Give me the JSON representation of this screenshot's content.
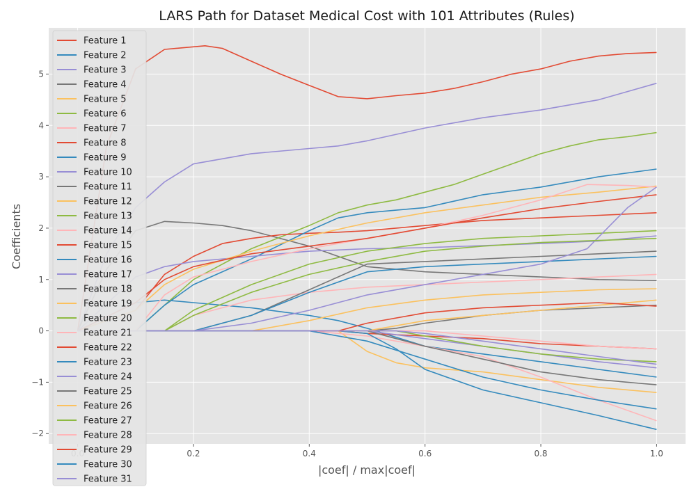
{
  "chart_data": {
    "type": "line",
    "title": "LARS Path for Dataset Medical Cost with 101 Attributes (Rules)",
    "xlabel": "|coef| / max|coef|",
    "ylabel": "Coefficients",
    "xlim": [
      -0.05,
      1.05
    ],
    "ylim": [
      -2.2,
      5.9
    ],
    "xticks": [
      0.0,
      0.2,
      0.4,
      0.6,
      0.8,
      1.0
    ],
    "xtick_labels": [
      "0.0",
      "0.2",
      "0.4",
      "0.6",
      "0.8",
      "1.0"
    ],
    "yticks": [
      -2,
      -1,
      0,
      1,
      2,
      3,
      4,
      5
    ],
    "ytick_labels": [
      "−2",
      "−1",
      "0",
      "1",
      "2",
      "3",
      "4",
      "5"
    ],
    "grid": true,
    "legend_position": "upper-left",
    "colors": [
      "#E24A33",
      "#348ABD",
      "#988ED5",
      "#777777",
      "#FBC15E",
      "#8EBA42",
      "#FFB5B8"
    ],
    "series": [
      {
        "name": "Feature 1",
        "x": [
          0,
          0.05,
          0.1,
          0.15,
          0.22,
          0.25,
          0.3,
          0.35,
          0.4,
          0.45,
          0.5,
          0.55,
          0.6,
          0.65,
          0.7,
          0.75,
          0.8,
          0.85,
          0.9,
          0.95,
          1.0
        ],
        "y": [
          0,
          3.6,
          5.1,
          5.48,
          5.55,
          5.5,
          5.25,
          5.0,
          4.78,
          4.56,
          4.52,
          4.58,
          4.63,
          4.72,
          4.85,
          5.0,
          5.1,
          5.25,
          5.35,
          5.4,
          5.42
        ]
      },
      {
        "name": "Feature 2",
        "x": [
          0,
          0.1,
          0.15,
          0.2,
          0.3,
          0.4,
          0.45,
          0.5,
          0.6,
          0.7,
          0.8,
          0.9,
          1.0
        ],
        "y": [
          0,
          0.55,
          0.6,
          0.55,
          0.45,
          0.3,
          0.2,
          0.05,
          -0.3,
          -0.45,
          -0.6,
          -0.75,
          -0.9
        ]
      },
      {
        "name": "Feature 3",
        "x": [
          0,
          0.05,
          0.1,
          0.15,
          0.2,
          0.3,
          0.4,
          0.45,
          0.5,
          0.6,
          0.7,
          0.8,
          0.9,
          1.0
        ],
        "y": [
          0,
          1.5,
          2.4,
          2.9,
          3.25,
          3.45,
          3.55,
          3.6,
          3.7,
          3.95,
          4.15,
          4.3,
          4.5,
          4.82
        ]
      },
      {
        "name": "Feature 4",
        "x": [
          0,
          0.05,
          0.1,
          0.15,
          0.2,
          0.25,
          0.3,
          0.4,
          0.5,
          0.6,
          0.7,
          0.8,
          0.9,
          1.0
        ],
        "y": [
          0,
          1.2,
          1.95,
          2.13,
          2.1,
          2.05,
          1.95,
          1.65,
          1.25,
          1.15,
          1.1,
          1.05,
          1.0,
          0.98
        ]
      },
      {
        "name": "Feature 5",
        "x": [
          0,
          0.45,
          0.5,
          0.55,
          0.6,
          0.7,
          0.8,
          0.9,
          1.0
        ],
        "y": [
          0,
          0,
          -0.4,
          -0.62,
          -0.72,
          -0.8,
          -0.95,
          -1.1,
          -1.2
        ]
      },
      {
        "name": "Feature 6",
        "x": [
          0,
          0.1,
          0.15,
          0.2,
          0.3,
          0.4,
          0.45,
          0.5,
          0.55,
          0.6,
          0.65,
          0.7,
          0.75,
          0.8,
          0.85,
          0.9,
          0.95,
          1.0
        ],
        "y": [
          0,
          0,
          0.5,
          1.0,
          1.6,
          2.05,
          2.3,
          2.45,
          2.55,
          2.7,
          2.85,
          3.05,
          3.25,
          3.45,
          3.6,
          3.72,
          3.78,
          3.86
        ]
      },
      {
        "name": "Feature 7",
        "x": [
          0,
          0.15,
          0.2,
          0.3,
          0.4,
          0.5,
          0.6,
          0.7,
          0.8,
          0.9,
          1.0
        ],
        "y": [
          0,
          0,
          0.3,
          0.6,
          0.75,
          0.85,
          0.9,
          0.95,
          1.0,
          1.05,
          1.1
        ]
      },
      {
        "name": "Feature 8",
        "x": [
          0,
          0.1,
          0.15,
          0.2,
          0.25,
          0.3,
          0.35,
          0.4,
          0.45,
          0.5,
          0.55,
          0.6,
          0.7,
          0.8,
          0.9,
          1.0
        ],
        "y": [
          0,
          0.4,
          1.1,
          1.45,
          1.7,
          1.8,
          1.87,
          1.9,
          1.92,
          1.95,
          2.0,
          2.05,
          2.15,
          2.2,
          2.25,
          2.3
        ]
      },
      {
        "name": "Feature 9",
        "x": [
          0,
          0.1,
          0.15,
          0.2,
          0.3,
          0.4,
          0.45,
          0.5,
          0.55,
          0.6,
          0.7,
          0.8,
          0.9,
          1.0
        ],
        "y": [
          0,
          0,
          0.5,
          0.9,
          1.4,
          1.95,
          2.2,
          2.3,
          2.35,
          2.4,
          2.65,
          2.8,
          3.0,
          3.15
        ]
      },
      {
        "name": "Feature 10",
        "x": [
          0,
          0.1,
          0.15,
          0.2,
          0.3,
          0.4,
          0.5,
          0.6,
          0.7,
          0.8,
          0.9,
          1.0
        ],
        "y": [
          0,
          1.05,
          1.25,
          1.35,
          1.45,
          1.55,
          1.6,
          1.62,
          1.66,
          1.7,
          1.75,
          1.85
        ]
      },
      {
        "name": "Feature 11",
        "x": [
          0,
          0.2,
          0.3,
          0.4,
          0.5,
          0.6,
          0.7,
          0.8,
          0.9,
          1.0
        ],
        "y": [
          0,
          0,
          0.3,
          0.8,
          1.3,
          1.35,
          1.4,
          1.45,
          1.5,
          1.55
        ]
      },
      {
        "name": "Feature 12",
        "x": [
          0,
          0.1,
          0.15,
          0.2,
          0.3,
          0.4,
          0.5,
          0.6,
          0.7,
          0.8,
          0.9,
          1.0
        ],
        "y": [
          0,
          0.4,
          0.9,
          1.2,
          1.55,
          1.85,
          2.1,
          2.3,
          2.45,
          2.6,
          2.7,
          2.82
        ]
      },
      {
        "name": "Feature 13",
        "x": [
          0,
          0.15,
          0.2,
          0.3,
          0.4,
          0.5,
          0.6,
          0.7,
          0.8,
          0.9,
          1.0
        ],
        "y": [
          0,
          0,
          0.4,
          0.9,
          1.3,
          1.55,
          1.7,
          1.8,
          1.85,
          1.9,
          1.95
        ]
      },
      {
        "name": "Feature 14",
        "x": [
          0,
          0.1,
          0.15,
          0.2,
          0.3,
          0.4,
          0.5,
          0.6,
          0.7,
          0.8,
          0.88,
          0.95,
          1.0
        ],
        "y": [
          0,
          0,
          0.7,
          1.05,
          1.35,
          1.6,
          1.8,
          2.0,
          2.25,
          2.55,
          2.85,
          2.83,
          2.8
        ]
      },
      {
        "name": "Feature 15",
        "x": [
          0,
          0.1,
          0.15,
          0.2,
          0.3,
          0.4,
          0.5,
          0.6,
          0.7,
          0.8,
          0.9,
          1.0
        ],
        "y": [
          0,
          0.55,
          1.0,
          1.25,
          1.5,
          1.65,
          1.8,
          2.0,
          2.2,
          2.38,
          2.52,
          2.65
        ]
      },
      {
        "name": "Feature 16",
        "x": [
          0,
          0.2,
          0.3,
          0.4,
          0.5,
          0.6,
          0.7,
          0.8,
          0.9,
          1.0
        ],
        "y": [
          0,
          0,
          0.3,
          0.75,
          1.15,
          1.25,
          1.3,
          1.35,
          1.4,
          1.45
        ]
      },
      {
        "name": "Feature 17",
        "x": [
          0,
          0.2,
          0.3,
          0.4,
          0.5,
          0.6,
          0.7,
          0.8,
          0.88,
          0.95,
          1.0
        ],
        "y": [
          0,
          0,
          0.15,
          0.4,
          0.7,
          0.9,
          1.1,
          1.3,
          1.6,
          2.4,
          2.8
        ]
      },
      {
        "name": "Feature 18",
        "x": [
          0,
          0.5,
          0.55,
          0.6,
          0.7,
          0.8,
          0.9,
          1.0
        ],
        "y": [
          0,
          0,
          0.05,
          0.15,
          0.3,
          0.4,
          0.45,
          0.5
        ]
      },
      {
        "name": "Feature 19",
        "x": [
          0,
          0.3,
          0.4,
          0.5,
          0.6,
          0.7,
          0.8,
          0.9,
          1.0
        ],
        "y": [
          0,
          0,
          0.2,
          0.45,
          0.6,
          0.7,
          0.75,
          0.8,
          0.82
        ]
      },
      {
        "name": "Feature 20",
        "x": [
          0,
          0.15,
          0.2,
          0.3,
          0.4,
          0.5,
          0.6,
          0.7,
          0.8,
          0.9,
          1.0
        ],
        "y": [
          0,
          0,
          0.3,
          0.75,
          1.1,
          1.35,
          1.55,
          1.65,
          1.72,
          1.76,
          1.8
        ]
      },
      {
        "name": "Feature 21",
        "x": [
          0,
          0.4,
          0.5,
          0.6,
          0.7,
          0.8,
          0.9,
          1.0
        ],
        "y": [
          0,
          0,
          -0.1,
          -0.3,
          -0.5,
          -0.9,
          -1.35,
          -1.75
        ]
      },
      {
        "name": "Feature 22",
        "x": [
          0,
          0.45,
          0.5,
          0.6,
          0.7,
          0.8,
          0.9,
          1.0
        ],
        "y": [
          0,
          0,
          -0.05,
          -0.1,
          -0.15,
          -0.25,
          -0.3,
          -0.35
        ]
      },
      {
        "name": "Feature 23",
        "x": [
          0,
          0.45,
          0.5,
          0.55,
          0.6,
          0.7,
          0.8,
          0.9,
          1.0
        ],
        "y": [
          0,
          0,
          -0.05,
          -0.35,
          -0.75,
          -1.15,
          -1.4,
          -1.65,
          -1.92
        ]
      },
      {
        "name": "Feature 24",
        "x": [
          0,
          0.5,
          0.6,
          0.7,
          0.8,
          0.9,
          1.0
        ],
        "y": [
          0,
          0,
          -0.15,
          -0.3,
          -0.45,
          -0.6,
          -0.72
        ]
      },
      {
        "name": "Feature 25",
        "x": [
          0,
          0.5,
          0.55,
          0.6,
          0.7,
          0.8,
          0.9,
          1.0
        ],
        "y": [
          0,
          0,
          -0.15,
          -0.3,
          -0.55,
          -0.8,
          -0.95,
          -1.05
        ]
      },
      {
        "name": "Feature 26",
        "x": [
          0,
          0.5,
          0.6,
          0.7,
          0.8,
          0.9,
          1.0
        ],
        "y": [
          0,
          0,
          0.2,
          0.3,
          0.4,
          0.5,
          0.6
        ]
      },
      {
        "name": "Feature 27",
        "x": [
          0,
          0.55,
          0.6,
          0.7,
          0.8,
          0.9,
          1.0
        ],
        "y": [
          0,
          0,
          -0.1,
          -0.3,
          -0.45,
          -0.55,
          -0.6
        ]
      },
      {
        "name": "Feature 28",
        "x": [
          0,
          0.6,
          0.7,
          0.8,
          0.9,
          1.0
        ],
        "y": [
          0,
          0,
          -0.1,
          -0.2,
          -0.3,
          -0.35
        ]
      },
      {
        "name": "Feature 29",
        "x": [
          0,
          0.45,
          0.5,
          0.6,
          0.7,
          0.8,
          0.9,
          1.0
        ],
        "y": [
          0,
          0,
          0.15,
          0.35,
          0.45,
          0.5,
          0.55,
          0.48
        ]
      },
      {
        "name": "Feature 30",
        "x": [
          0,
          0.4,
          0.5,
          0.6,
          0.7,
          0.8,
          0.9,
          1.0
        ],
        "y": [
          0,
          0,
          -0.2,
          -0.55,
          -0.9,
          -1.15,
          -1.35,
          -1.52
        ]
      },
      {
        "name": "Feature 31",
        "x": [
          0,
          0.55,
          0.6,
          0.7,
          0.8,
          0.9,
          1.0
        ],
        "y": [
          0,
          0,
          -0.05,
          -0.2,
          -0.35,
          -0.5,
          -0.65
        ]
      }
    ]
  }
}
